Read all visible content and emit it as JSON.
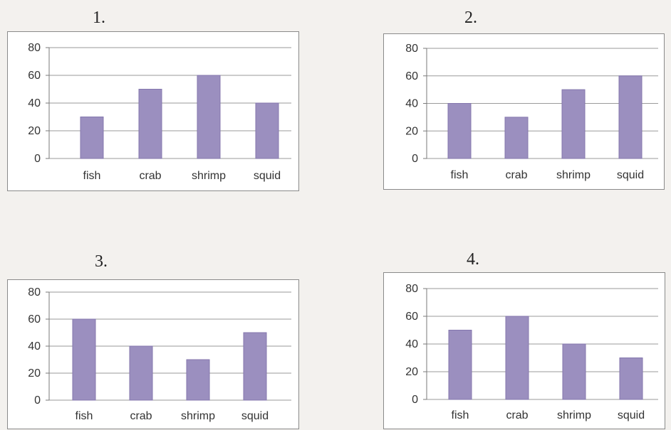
{
  "chart_data": [
    {
      "type": "bar",
      "number": "1.",
      "categories": [
        "fish",
        "crab",
        "shrimp",
        "squid"
      ],
      "values": [
        30,
        50,
        60,
        40
      ],
      "yticks": [
        "0",
        "20",
        "40",
        "60",
        "80"
      ],
      "ylim": [
        0,
        80
      ],
      "grid": true,
      "bar_color": "#9b8fbf"
    },
    {
      "type": "bar",
      "number": "2.",
      "categories": [
        "fish",
        "crab",
        "shrimp",
        "squid"
      ],
      "values": [
        40,
        30,
        50,
        60
      ],
      "yticks": [
        "0",
        "20",
        "40",
        "60",
        "80"
      ],
      "ylim": [
        0,
        80
      ],
      "grid": true,
      "bar_color": "#9b8fbf"
    },
    {
      "type": "bar",
      "number": "3.",
      "categories": [
        "fish",
        "crab",
        "shrimp",
        "squid"
      ],
      "values": [
        60,
        40,
        30,
        50
      ],
      "yticks": [
        "0",
        "20",
        "40",
        "60",
        "80"
      ],
      "ylim": [
        0,
        80
      ],
      "grid": true,
      "bar_color": "#9b8fbf"
    },
    {
      "type": "bar",
      "number": "4.",
      "categories": [
        "fish",
        "crab",
        "shrimp",
        "squid"
      ],
      "values": [
        50,
        60,
        40,
        30
      ],
      "yticks": [
        "0",
        "20",
        "40",
        "60",
        "80"
      ],
      "ylim": [
        0,
        80
      ],
      "grid": true,
      "bar_color": "#9b8fbf"
    }
  ]
}
